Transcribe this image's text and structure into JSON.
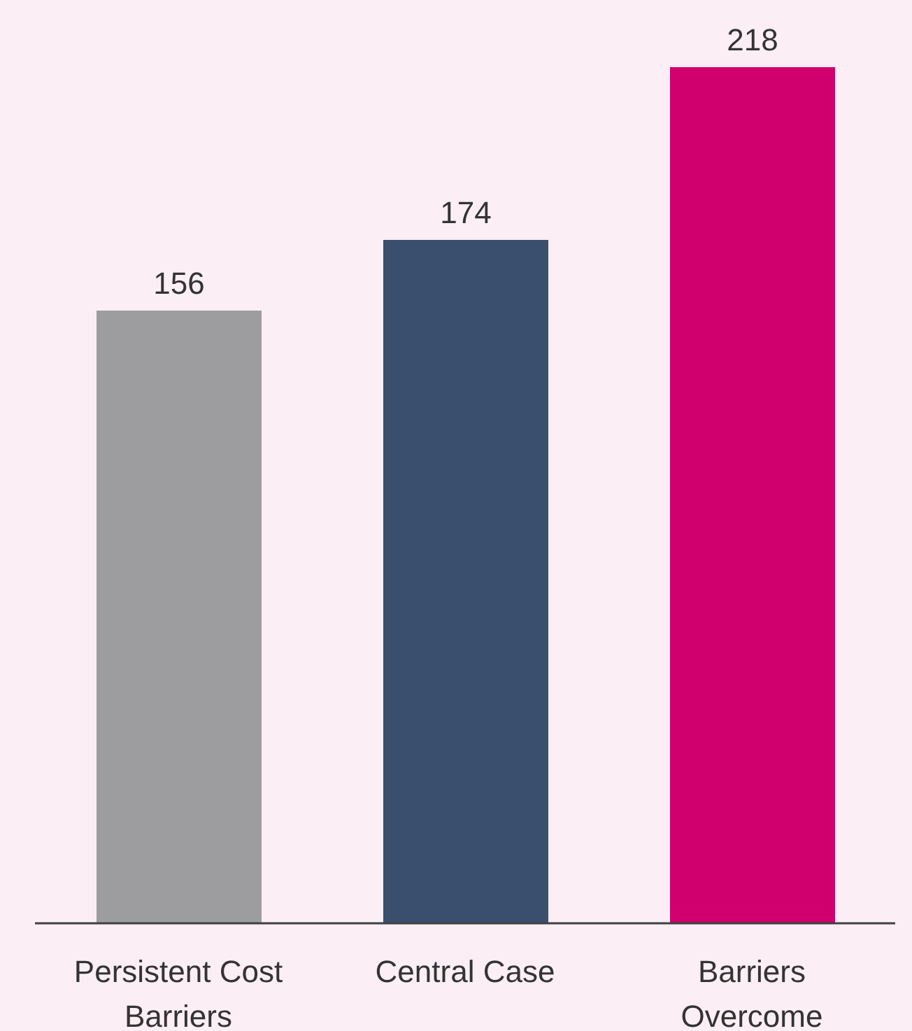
{
  "chart_data": {
    "type": "bar",
    "categories": [
      "Persistent Cost Barriers",
      "Central Case",
      "Barriers Overcome"
    ],
    "values": [
      156,
      174,
      218
    ],
    "colors": [
      "#9d9d9f",
      "#3a4f6e",
      "#d0006f"
    ],
    "data_labels": true
  }
}
